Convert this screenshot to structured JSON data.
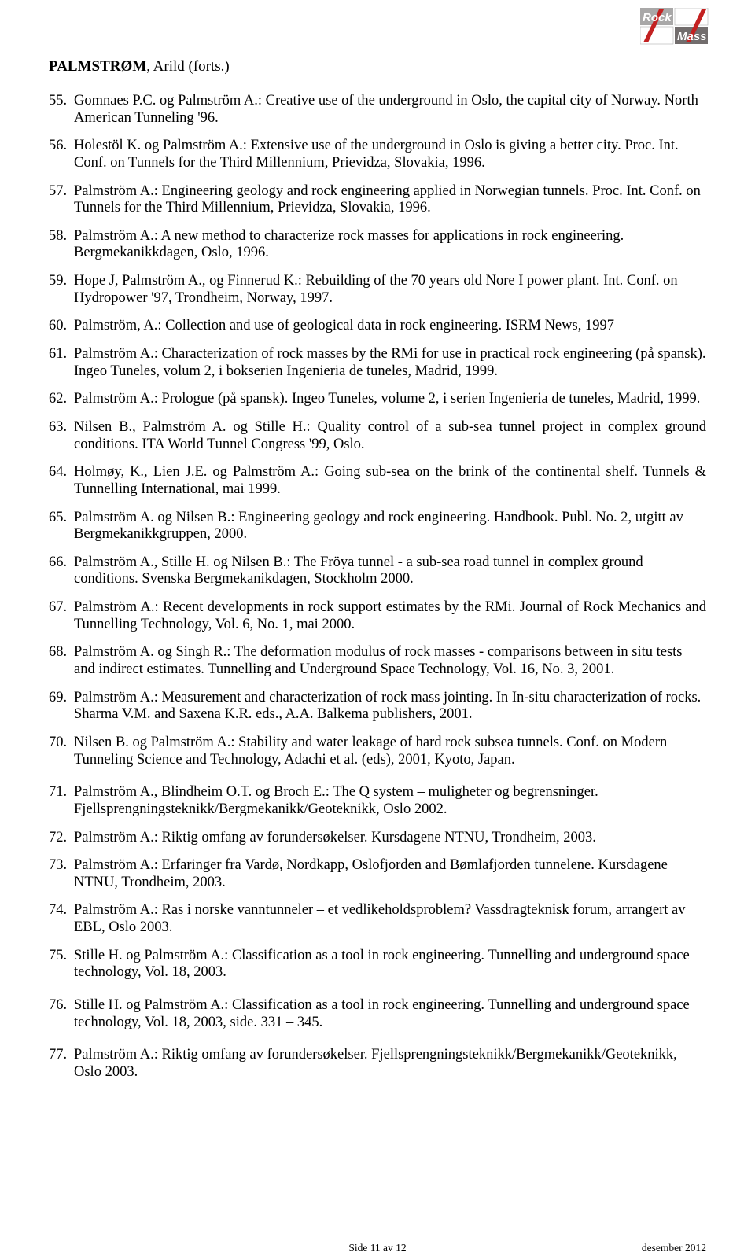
{
  "logo": {
    "text_rock": "Rock",
    "text_mass": "Mass",
    "bg_gray": "#a9a8a8",
    "bg_white": "#ffffff",
    "bg_dark": "#726d6d",
    "stripe1": "#c32121",
    "stripe2": "#c32121",
    "text_color": "#ffffff"
  },
  "heading": {
    "surname": "PALMSTRØM",
    "rest": ", Arild  (forts.)"
  },
  "items": [
    {
      "n": "55.",
      "t": "Gomnaes P.C. og Palmström A.: Creative use of the underground in Oslo, the capital city of Norway. North American Tunneling '96."
    },
    {
      "n": "56.",
      "t": "Holestöl K. og Palmström A.: Extensive use of the underground in Oslo is giving a better city. Proc. Int. Conf. on Tunnels for the Third Millennium, Prievidza, Slovakia, 1996."
    },
    {
      "n": "57.",
      "t": "Palmström A.: Engineering geology and rock engineering applied in Norwegian tunnels. Proc. Int. Conf. on Tunnels for the Third Millennium, Prievidza, Slovakia, 1996."
    },
    {
      "n": "58.",
      "t": "Palmström A.: A new method to characterize rock masses for applications in rock engineering. Bergmekanikkdagen, Oslo, 1996."
    },
    {
      "n": "59.",
      "t": "Hope J, Palmström A., og Finnerud K.: Rebuilding of the 70 years old Nore I power plant. Int. Conf. on Hydropower '97, Trondheim, Norway, 1997."
    },
    {
      "n": "60.",
      "t": "Palmström, A.:  Collection and use of geological data in rock engineering. ISRM News, 1997"
    },
    {
      "n": "61.",
      "t": "Palmström A.: Characterization of rock masses by the RMi for use in practical rock engineering (på spansk). Ingeo Tuneles, volum 2, i bokserien Ingenieria de tuneles, Madrid, 1999."
    },
    {
      "n": "62.",
      "t": "Palmström A.: Prologue (på spansk). Ingeo Tuneles, volume 2, i serien Ingenieria de tuneles, Madrid, 1999."
    },
    {
      "n": "63.",
      "t": "Nilsen B., Palmström A. og Stille H.: Quality control of a sub-sea tunnel project in complex ground conditions. ITA World Tunnel Congress '99, Oslo.",
      "j": true
    },
    {
      "n": "64.",
      "t": "Holmøy, K., Lien J.E. og Palmström A.: Going sub-sea on the brink of the continental shelf. Tunnels & Tunnelling International, mai 1999.",
      "j": true
    },
    {
      "n": "65.",
      "t": "Palmström A. og Nilsen B.: Engineering geology and rock engineering. Handbook. Publ. No. 2, utgitt av Bergmekanikkgruppen, 2000."
    },
    {
      "n": "66.",
      "t": "Palmström A., Stille H. og Nilsen B.: The Fröya tunnel - a sub-sea road tunnel in complex ground conditions. Svenska Bergmekanikdagen, Stockholm 2000."
    },
    {
      "n": "67.",
      "t": "Palmström A.: Recent developments in rock support estimates by the RMi. Journal of Rock Mechanics and Tunnelling Technology, Vol. 6, No. 1, mai 2000.",
      "j": true
    },
    {
      "n": "68.",
      "t": "Palmström A. og Singh R.: The deformation modulus of rock masses  - comparisons between in situ tests and indirect estimates. Tunnelling and Underground Space Technology, Vol. 16, No. 3, 2001."
    },
    {
      "n": "69.",
      "t": "Palmström A.: Measurement and characterization of rock mass jointing. In In-situ characterization of rocks. Sharma V.M. and Saxena K.R. eds., A.A. Balkema publishers, 2001."
    },
    {
      "n": "70.",
      "t": "Nilsen B. og Palmström A.: Stability and water leakage of hard rock subsea tunnels. Conf. on Modern Tunneling Science and Technology, Adachi et al. (eds), 2001, Kyoto, Japan.",
      "mb": 20
    },
    {
      "n": "71.",
      "t": "Palmström A., Blindheim O.T. og Broch E.: The Q system – muligheter og begrensninger. Fjellsprengningsteknikk/Bergmekanikk/Geoteknikk, Oslo 2002."
    },
    {
      "n": "72.",
      "t": "Palmström A.: Riktig omfang av forundersøkelser. Kursdagene NTNU, Trondheim, 2003."
    },
    {
      "n": "73.",
      "t": "Palmström A.: Erfaringer fra Vardø, Nordkapp, Oslofjorden and Bømlafjorden tunnelene. Kursdagene NTNU, Trondheim, 2003."
    },
    {
      "n": "74.",
      "t": "Palmström A.: Ras i norske vanntunneler – et vedlikeholdsproblem? Vassdragteknisk forum, arrangert av EBL, Oslo 2003."
    },
    {
      "n": "75.",
      "t": "Stille H. og Palmström A.: Classification as a tool in rock engineering. Tunnelling and underground space technology, Vol. 18, 2003.",
      "mb": 20
    },
    {
      "n": "76.",
      "t": "Stille H. og Palmström A.: Classification as a tool in rock engineering. Tunnelling and underground space technology, Vol. 18, 2003, side. 331 – 345.",
      "mb": 20
    },
    {
      "n": "77.",
      "t": "Palmström A.: Riktig omfang av forundersøkelser. Fjellsprengningsteknikk/Bergmekanikk/Geoteknikk, Oslo 2003."
    }
  ],
  "footer": {
    "center": "Side 11 av 12",
    "right": "desember 2012"
  }
}
